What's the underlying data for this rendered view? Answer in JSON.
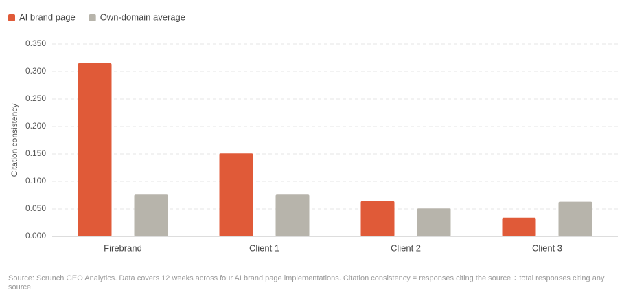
{
  "chart_data": {
    "type": "bar",
    "y_label": "Citation consistency",
    "categories": [
      "Firebrand",
      "Client 1",
      "Client 2",
      "Client 3"
    ],
    "series": [
      {
        "name": "AI brand page",
        "color": "#e05a38",
        "values": [
          0.315,
          0.151,
          0.064,
          0.034
        ]
      },
      {
        "name": "Own-domain average",
        "color": "#b7b4ab",
        "values": [
          0.076,
          0.076,
          0.051,
          0.063
        ]
      }
    ],
    "ylim": [
      0,
      0.35
    ],
    "yticks": [
      {
        "value": 0,
        "label": "0.000"
      },
      {
        "value": 0.05,
        "label": "0.050"
      },
      {
        "value": 0.1,
        "label": "0.100"
      },
      {
        "value": 0.15,
        "label": "0.150"
      },
      {
        "value": 0.2,
        "label": "0.200"
      },
      {
        "value": 0.25,
        "label": "0.250"
      },
      {
        "value": 0.3,
        "label": "0.300"
      },
      {
        "value": 0.35,
        "label": "0.350"
      }
    ],
    "grid": true,
    "legend": "top-left",
    "note": "Source: Scrunch GEO Analytics. Data covers 12 weeks across four AI brand page implementations. Citation consistency = responses citing the source ÷ total responses citing any source."
  }
}
